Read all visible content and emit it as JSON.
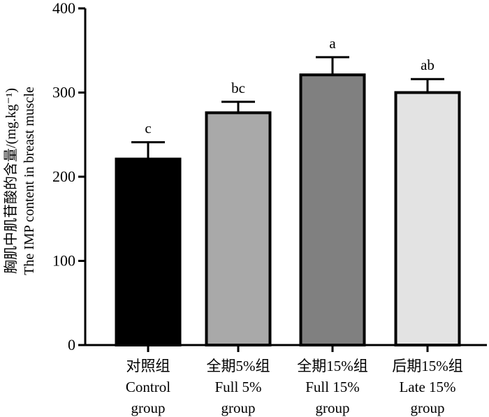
{
  "chart_data": {
    "type": "bar",
    "title": "",
    "ylabel_lines": [
      "胸肌中肌苷酸的含量/(mg.kg⁻¹)",
      "The IMP content in breast muscle"
    ],
    "xlabel": "",
    "ylim": [
      0,
      400
    ],
    "yticks": [
      0,
      100,
      200,
      300,
      400
    ],
    "grid": false,
    "legend": "none",
    "categories": [
      {
        "lines": [
          "对照组",
          "Control",
          "group"
        ]
      },
      {
        "lines": [
          "全期5%组",
          "Full 5%",
          "group"
        ]
      },
      {
        "lines": [
          "全期15%组",
          "Full 15%",
          "group"
        ]
      },
      {
        "lines": [
          "后期15%组",
          "Late 15%",
          "group"
        ]
      }
    ],
    "values": [
      221,
      276,
      321,
      300
    ],
    "errors": [
      20,
      13,
      21,
      16
    ],
    "significance": [
      "c",
      "bc",
      "a",
      "ab"
    ],
    "colors": [
      "#000000",
      "#a9a9a9",
      "#808080",
      "#e3e3e3"
    ],
    "edge_color": "#000000"
  }
}
